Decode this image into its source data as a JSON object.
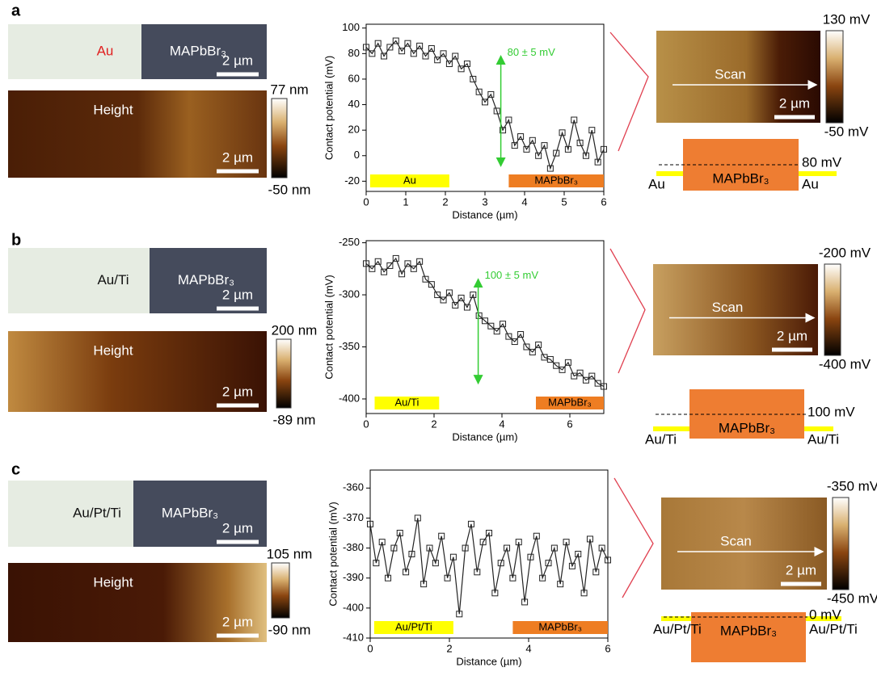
{
  "panels": [
    {
      "label": "a",
      "optical": {
        "left": "Au",
        "left_color": "#e02020",
        "right": "MAPbBr₃",
        "scale": "2 µm"
      },
      "height": {
        "title": "Height",
        "scale": "2 µm",
        "max": "77 nm",
        "min": "-50 nm"
      },
      "kpfm": {
        "title": "Scan",
        "scale": "2 µm",
        "max": "130 mV",
        "min": "-50 mV"
      },
      "schematic": {
        "center": "MAPbBr₃",
        "left": "Au",
        "right": "Au",
        "offset": "80 mV"
      }
    },
    {
      "label": "b",
      "optical": {
        "left": "Au/Ti",
        "left_color": "#111111",
        "right": "MAPbBr₃",
        "scale": "2 µm"
      },
      "height": {
        "title": "Height",
        "scale": "2 µm",
        "max": "200 nm",
        "min": "-89 nm"
      },
      "kpfm": {
        "title": "Scan",
        "scale": "2 µm",
        "max": "-200 mV",
        "min": "-400 mV"
      },
      "schematic": {
        "center": "MAPbBr₃",
        "left": "Au/Ti",
        "right": "Au/Ti",
        "offset": "100 mV"
      }
    },
    {
      "label": "c",
      "optical": {
        "left": "Au/Pt/Ti",
        "left_color": "#111111",
        "right": "MAPbBr₃",
        "scale": "2 µm"
      },
      "height": {
        "title": "Height",
        "scale": "2 µm",
        "max": "105 nm",
        "min": "-90 nm"
      },
      "kpfm": {
        "title": "Scan",
        "scale": "2 µm",
        "max": "-350 mV",
        "min": "-450 mV"
      },
      "schematic": {
        "center": "MAPbBr₃",
        "left": "Au/Pt/Ti",
        "right": "Au/Pt/Ti",
        "offset": "0 mV"
      }
    }
  ],
  "chart_data": [
    {
      "type": "line",
      "xlabel": "Distance (µm)",
      "ylabel": "Contact potential (mV)",
      "color": "#222222",
      "x": [
        0,
        0.15,
        0.3,
        0.45,
        0.6,
        0.75,
        0.9,
        1.05,
        1.2,
        1.35,
        1.5,
        1.65,
        1.8,
        1.95,
        2.1,
        2.25,
        2.4,
        2.55,
        2.7,
        2.85,
        3.0,
        3.15,
        3.3,
        3.45,
        3.6,
        3.75,
        3.9,
        4.05,
        4.2,
        4.35,
        4.5,
        4.65,
        4.8,
        4.95,
        5.1,
        5.25,
        5.4,
        5.55,
        5.7,
        5.85,
        6.0
      ],
      "values": [
        85,
        80,
        88,
        78,
        85,
        90,
        82,
        88,
        80,
        86,
        78,
        84,
        75,
        80,
        72,
        78,
        68,
        72,
        60,
        50,
        42,
        48,
        35,
        20,
        28,
        8,
        15,
        5,
        12,
        0,
        8,
        -10,
        2,
        18,
        5,
        28,
        10,
        0,
        20,
        -5,
        5
      ],
      "xlim": [
        0,
        6
      ],
      "xticks": [
        0,
        1,
        2,
        3,
        4,
        5,
        6
      ],
      "ylim": [
        -28,
        103
      ],
      "yticks": [
        -20,
        0,
        20,
        40,
        60,
        80,
        100
      ],
      "regions": [
        {
          "label": "Au",
          "x": [
            0.1,
            2.1
          ],
          "color": "#ffff00"
        },
        {
          "label": "MAPbBr₃",
          "x": [
            3.6,
            6
          ],
          "color": "#ee7d22"
        }
      ],
      "annotation": {
        "text": "80 ± 5 mV",
        "x": 3.4,
        "y": [
          78,
          -8
        ],
        "color": "#33cc33"
      }
    },
    {
      "type": "line",
      "xlabel": "Distance (µm)",
      "ylabel": "Contact potential (mV)",
      "color": "#222222",
      "x": [
        0,
        0.175,
        0.35,
        0.525,
        0.7,
        0.875,
        1.05,
        1.225,
        1.4,
        1.575,
        1.75,
        1.925,
        2.1,
        2.275,
        2.45,
        2.625,
        2.8,
        2.975,
        3.15,
        3.325,
        3.5,
        3.675,
        3.85,
        4.025,
        4.2,
        4.375,
        4.55,
        4.725,
        4.9,
        5.075,
        5.25,
        5.425,
        5.6,
        5.775,
        5.95,
        6.125,
        6.3,
        6.475,
        6.65,
        6.825,
        7.0
      ],
      "values": [
        -270,
        -275,
        -268,
        -278,
        -272,
        -265,
        -280,
        -270,
        -275,
        -268,
        -285,
        -290,
        -300,
        -305,
        -298,
        -310,
        -303,
        -312,
        -300,
        -320,
        -325,
        -330,
        -335,
        -328,
        -340,
        -345,
        -338,
        -350,
        -355,
        -348,
        -360,
        -362,
        -368,
        -372,
        -365,
        -378,
        -375,
        -382,
        -378,
        -385,
        -388
      ],
      "xlim": [
        0,
        7
      ],
      "xticks": [
        0,
        2,
        4,
        6
      ],
      "ylim": [
        -414,
        -248
      ],
      "yticks": [
        -400,
        -350,
        -300,
        -250
      ],
      "regions": [
        {
          "label": "Au/Ti",
          "x": [
            0.25,
            2.15
          ],
          "color": "#ffff00"
        },
        {
          "label": "MAPbBr₃",
          "x": [
            5.0,
            7
          ],
          "color": "#ee7d22"
        }
      ],
      "annotation": {
        "text": "100 ± 5 mV",
        "x": 3.3,
        "y": [
          -285,
          -385
        ],
        "color": "#33cc33"
      }
    },
    {
      "type": "line",
      "xlabel": "Distance (µm)",
      "ylabel": "Contact potential (mV)",
      "color": "#222222",
      "x": [
        0,
        0.15,
        0.3,
        0.45,
        0.6,
        0.75,
        0.9,
        1.05,
        1.2,
        1.35,
        1.5,
        1.65,
        1.8,
        1.95,
        2.1,
        2.25,
        2.4,
        2.55,
        2.7,
        2.85,
        3.0,
        3.15,
        3.3,
        3.45,
        3.6,
        3.75,
        3.9,
        4.05,
        4.2,
        4.35,
        4.5,
        4.65,
        4.8,
        4.95,
        5.1,
        5.25,
        5.4,
        5.55,
        5.7,
        5.85,
        6.0
      ],
      "values": [
        -372,
        -385,
        -378,
        -390,
        -380,
        -375,
        -388,
        -382,
        -370,
        -392,
        -380,
        -385,
        -376,
        -390,
        -383,
        -402,
        -380,
        -372,
        -388,
        -378,
        -375,
        -395,
        -385,
        -380,
        -390,
        -378,
        -398,
        -383,
        -376,
        -390,
        -385,
        -380,
        -392,
        -378,
        -386,
        -382,
        -395,
        -377,
        -388,
        -380,
        -384
      ],
      "xlim": [
        0,
        6
      ],
      "xticks": [
        0,
        2,
        4,
        6
      ],
      "ylim": [
        -410,
        -354
      ],
      "yticks": [
        -410,
        -400,
        -390,
        -380,
        -370,
        -360
      ],
      "regions": [
        {
          "label": "Au/Pt/Ti",
          "x": [
            0.1,
            2.1
          ],
          "color": "#ffff00"
        },
        {
          "label": "MAPbBr₃",
          "x": [
            3.6,
            6
          ],
          "color": "#ee7d22"
        }
      ]
    }
  ]
}
